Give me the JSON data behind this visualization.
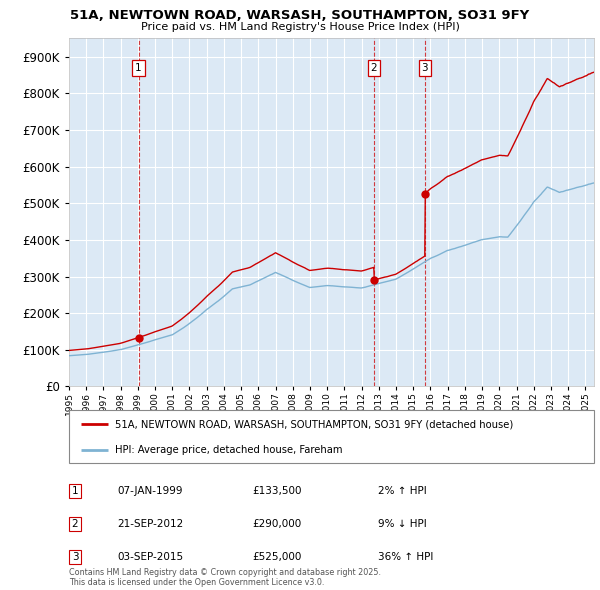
{
  "title_line1": "51A, NEWTOWN ROAD, WARSASH, SOUTHAMPTON, SO31 9FY",
  "title_line2": "Price paid vs. HM Land Registry's House Price Index (HPI)",
  "bg_color": "#dce9f5",
  "grid_color": "#ffffff",
  "red_line_color": "#cc0000",
  "blue_line_color": "#7fb3d3",
  "t_years": [
    1999.04,
    2012.72,
    2015.67
  ],
  "t_prices": [
    133500,
    290000,
    525000
  ],
  "vline_labels": [
    "1",
    "2",
    "3"
  ],
  "table_rows": [
    {
      "num": "1",
      "date": "07-JAN-1999",
      "price": "£133,500",
      "change": "2% ↑ HPI"
    },
    {
      "num": "2",
      "date": "21-SEP-2012",
      "price": "£290,000",
      "change": "9% ↓ HPI"
    },
    {
      "num": "3",
      "date": "03-SEP-2015",
      "price": "£525,000",
      "change": "36% ↑ HPI"
    }
  ],
  "legend_red": "51A, NEWTOWN ROAD, WARSASH, SOUTHAMPTON, SO31 9FY (detached house)",
  "legend_blue": "HPI: Average price, detached house, Fareham",
  "footnote": "Contains HM Land Registry data © Crown copyright and database right 2025.\nThis data is licensed under the Open Government Licence v3.0.",
  "xmin": 1995.0,
  "xmax": 2025.5,
  "ymin": 0,
  "ymax": 950000
}
